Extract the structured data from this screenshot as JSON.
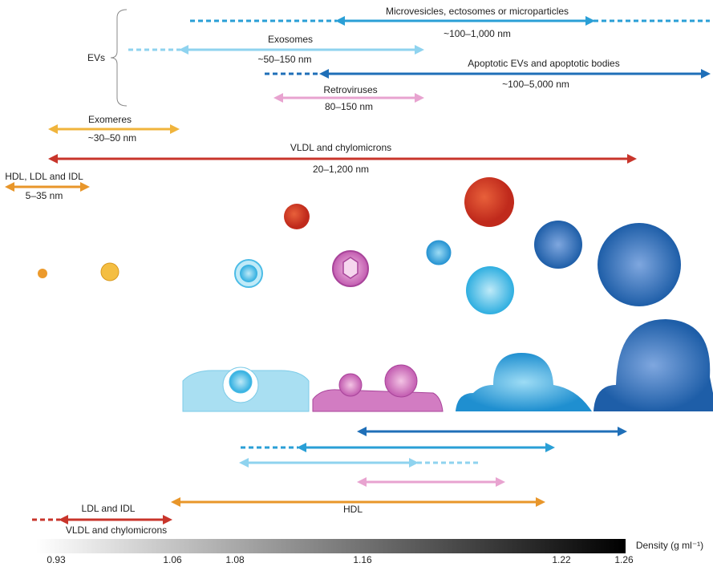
{
  "size_ranges": [
    {
      "name": "Microvesicles, ectosomes or microparticles",
      "range": "~100–1,000 nm"
    },
    {
      "name": "Exosomes",
      "range": "~50–150 nm"
    },
    {
      "name": "Apoptotic EVs and apoptotic bodies",
      "range": "~100–5,000 nm"
    },
    {
      "name": "Retroviruses",
      "range": "80–150 nm"
    },
    {
      "name": "Exomeres",
      "range": "~30–50 nm"
    },
    {
      "name": "VLDL and chylomicrons",
      "range": "20–1,200 nm"
    },
    {
      "name": "HDL, LDL and IDL",
      "range": "5–35 nm"
    }
  ],
  "group_label": "EVs",
  "density_labels": [
    "LDL and IDL",
    "HDL",
    "VLDL and chylomicrons"
  ],
  "density_scale": {
    "title": "Density (g ml⁻¹)",
    "ticks": [
      "0.93",
      "1.06",
      "1.08",
      "1.16",
      "1.22",
      "1.26"
    ]
  }
}
